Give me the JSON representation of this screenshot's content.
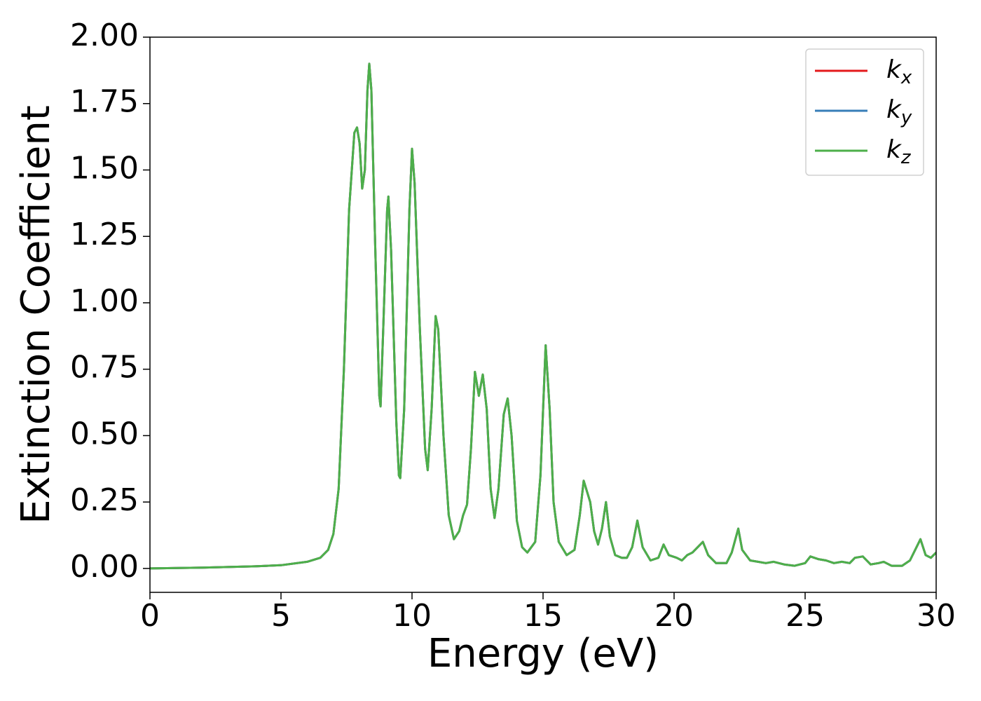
{
  "chart_data": {
    "type": "line",
    "xlabel": "Energy (eV)",
    "ylabel": "Extinction Coefficient",
    "x": [
      0,
      2,
      4,
      5,
      6,
      6.5,
      6.8,
      7.0,
      7.2,
      7.4,
      7.6,
      7.8,
      7.9,
      8.0,
      8.1,
      8.2,
      8.3,
      8.37,
      8.45,
      8.6,
      8.75,
      8.8,
      8.9,
      9.05,
      9.1,
      9.2,
      9.4,
      9.5,
      9.55,
      9.7,
      9.9,
      10.0,
      10.1,
      10.3,
      10.5,
      10.6,
      10.75,
      10.9,
      11.0,
      11.2,
      11.4,
      11.6,
      11.8,
      11.95,
      12.1,
      12.25,
      12.4,
      12.55,
      12.7,
      12.85,
      13.0,
      13.15,
      13.3,
      13.5,
      13.65,
      13.8,
      14.0,
      14.2,
      14.4,
      14.7,
      14.9,
      15.1,
      15.25,
      15.4,
      15.6,
      15.9,
      16.2,
      16.4,
      16.55,
      16.8,
      16.95,
      17.1,
      17.25,
      17.4,
      17.55,
      17.75,
      18.0,
      18.2,
      18.4,
      18.6,
      18.8,
      19.1,
      19.4,
      19.6,
      19.8,
      20.1,
      20.3,
      20.5,
      20.7,
      20.9,
      21.1,
      21.3,
      21.6,
      22.0,
      22.2,
      22.45,
      22.6,
      22.9,
      23.2,
      23.5,
      23.8,
      24.2,
      24.6,
      25.0,
      25.2,
      25.5,
      25.8,
      26.1,
      26.4,
      26.7,
      26.9,
      27.2,
      27.5,
      27.8,
      28.0,
      28.3,
      28.7,
      29.0,
      29.4,
      29.6,
      29.8,
      30.0
    ],
    "series": [
      {
        "name": "kx",
        "color": "#e41a1c",
        "values": [
          0,
          0.003,
          0.008,
          0.012,
          0.025,
          0.04,
          0.07,
          0.13,
          0.3,
          0.75,
          1.35,
          1.64,
          1.66,
          1.6,
          1.43,
          1.5,
          1.8,
          1.9,
          1.8,
          1.2,
          0.65,
          0.61,
          0.9,
          1.35,
          1.4,
          1.2,
          0.55,
          0.35,
          0.34,
          0.6,
          1.35,
          1.58,
          1.45,
          0.9,
          0.45,
          0.37,
          0.6,
          0.95,
          0.9,
          0.5,
          0.2,
          0.11,
          0.14,
          0.2,
          0.24,
          0.45,
          0.74,
          0.65,
          0.73,
          0.6,
          0.3,
          0.19,
          0.3,
          0.58,
          0.64,
          0.5,
          0.18,
          0.08,
          0.06,
          0.1,
          0.35,
          0.84,
          0.6,
          0.25,
          0.1,
          0.05,
          0.07,
          0.2,
          0.33,
          0.25,
          0.14,
          0.09,
          0.15,
          0.25,
          0.12,
          0.05,
          0.04,
          0.04,
          0.08,
          0.18,
          0.08,
          0.03,
          0.04,
          0.09,
          0.05,
          0.04,
          0.03,
          0.05,
          0.06,
          0.08,
          0.1,
          0.05,
          0.02,
          0.02,
          0.06,
          0.15,
          0.07,
          0.03,
          0.025,
          0.02,
          0.025,
          0.015,
          0.01,
          0.02,
          0.045,
          0.035,
          0.03,
          0.02,
          0.025,
          0.02,
          0.04,
          0.045,
          0.015,
          0.02,
          0.025,
          0.01,
          0.01,
          0.03,
          0.11,
          0.05,
          0.04,
          0.06
        ]
      },
      {
        "name": "ky",
        "color": "#377eb8",
        "values": [
          0,
          0.003,
          0.008,
          0.012,
          0.025,
          0.04,
          0.07,
          0.13,
          0.3,
          0.75,
          1.35,
          1.64,
          1.66,
          1.6,
          1.43,
          1.5,
          1.8,
          1.9,
          1.8,
          1.2,
          0.65,
          0.61,
          0.9,
          1.35,
          1.4,
          1.2,
          0.55,
          0.35,
          0.34,
          0.6,
          1.35,
          1.58,
          1.45,
          0.9,
          0.45,
          0.37,
          0.6,
          0.95,
          0.9,
          0.5,
          0.2,
          0.11,
          0.14,
          0.2,
          0.24,
          0.45,
          0.74,
          0.65,
          0.73,
          0.6,
          0.3,
          0.19,
          0.3,
          0.58,
          0.64,
          0.5,
          0.18,
          0.08,
          0.06,
          0.1,
          0.35,
          0.84,
          0.6,
          0.25,
          0.1,
          0.05,
          0.07,
          0.2,
          0.33,
          0.25,
          0.14,
          0.09,
          0.15,
          0.25,
          0.12,
          0.05,
          0.04,
          0.04,
          0.08,
          0.18,
          0.08,
          0.03,
          0.04,
          0.09,
          0.05,
          0.04,
          0.03,
          0.05,
          0.06,
          0.08,
          0.1,
          0.05,
          0.02,
          0.02,
          0.06,
          0.15,
          0.07,
          0.03,
          0.025,
          0.02,
          0.025,
          0.015,
          0.01,
          0.02,
          0.045,
          0.035,
          0.03,
          0.02,
          0.025,
          0.02,
          0.04,
          0.045,
          0.015,
          0.02,
          0.025,
          0.01,
          0.01,
          0.03,
          0.11,
          0.05,
          0.04,
          0.06
        ]
      },
      {
        "name": "kz",
        "color": "#4daf4a",
        "values": [
          0,
          0.003,
          0.008,
          0.012,
          0.025,
          0.04,
          0.07,
          0.13,
          0.3,
          0.75,
          1.35,
          1.64,
          1.66,
          1.6,
          1.43,
          1.5,
          1.8,
          1.9,
          1.8,
          1.2,
          0.65,
          0.61,
          0.9,
          1.35,
          1.4,
          1.2,
          0.55,
          0.35,
          0.34,
          0.6,
          1.35,
          1.58,
          1.45,
          0.9,
          0.45,
          0.37,
          0.6,
          0.95,
          0.9,
          0.5,
          0.2,
          0.11,
          0.14,
          0.2,
          0.24,
          0.45,
          0.74,
          0.65,
          0.73,
          0.6,
          0.3,
          0.19,
          0.3,
          0.58,
          0.64,
          0.5,
          0.18,
          0.08,
          0.06,
          0.1,
          0.35,
          0.84,
          0.6,
          0.25,
          0.1,
          0.05,
          0.07,
          0.2,
          0.33,
          0.25,
          0.14,
          0.09,
          0.15,
          0.25,
          0.12,
          0.05,
          0.04,
          0.04,
          0.08,
          0.18,
          0.08,
          0.03,
          0.04,
          0.09,
          0.05,
          0.04,
          0.03,
          0.05,
          0.06,
          0.08,
          0.1,
          0.05,
          0.02,
          0.02,
          0.06,
          0.15,
          0.07,
          0.03,
          0.025,
          0.02,
          0.025,
          0.015,
          0.01,
          0.02,
          0.045,
          0.035,
          0.03,
          0.02,
          0.025,
          0.02,
          0.04,
          0.045,
          0.015,
          0.02,
          0.025,
          0.01,
          0.01,
          0.03,
          0.11,
          0.05,
          0.04,
          0.06
        ]
      }
    ],
    "xlim": [
      0,
      30
    ],
    "xticks": [
      0,
      5,
      10,
      15,
      20,
      25,
      30
    ],
    "ylim": [
      -0.09,
      2.0
    ],
    "yticks": [
      {
        "value": 0,
        "label": "0.00"
      },
      {
        "value": 0.25,
        "label": "0.25"
      },
      {
        "value": 0.5,
        "label": "0.50"
      },
      {
        "value": 0.75,
        "label": "0.75"
      },
      {
        "value": 1.0,
        "label": "1.00"
      },
      {
        "value": 1.25,
        "label": "1.25"
      },
      {
        "value": 1.5,
        "label": "1.50"
      },
      {
        "value": 1.75,
        "label": "1.75"
      },
      {
        "value": 2.0,
        "label": "2.00"
      }
    ],
    "legend": "upper right",
    "grid": false
  }
}
